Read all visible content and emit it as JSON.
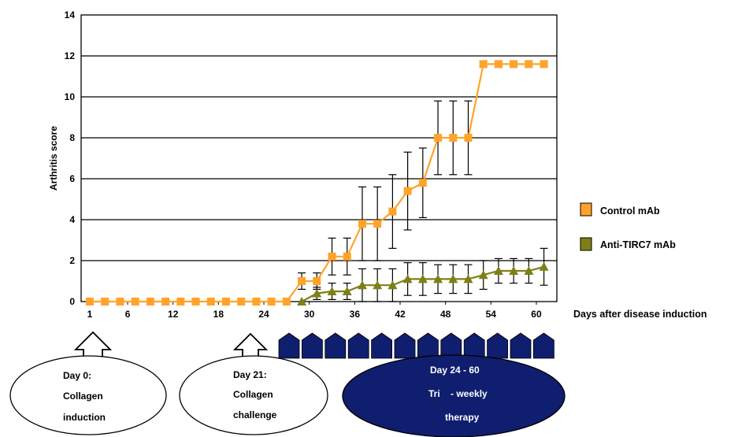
{
  "chart_data": {
    "type": "line",
    "xlabel": "Days after disease induction",
    "ylabel": "Arthritis score",
    "ylim": [
      0,
      14
    ],
    "yticks": [
      "0",
      "2",
      "4",
      "6",
      "8",
      "10",
      "12",
      "14"
    ],
    "xticks": [
      "1",
      "6",
      "12",
      "18",
      "24",
      "30",
      "36",
      "42",
      "48",
      "54",
      "60"
    ],
    "grid": "horizontal",
    "legend_position": "right",
    "series": [
      {
        "name": "Control mAb",
        "color": "#FFA32A",
        "marker": "square",
        "x": [
          1,
          3,
          5,
          7,
          9,
          11,
          13,
          15,
          17,
          19,
          21,
          23,
          25,
          27,
          29,
          31,
          33,
          35,
          37,
          39,
          41,
          43,
          45,
          47,
          49,
          51,
          53,
          55,
          57,
          59,
          61
        ],
        "y": [
          0,
          0,
          0,
          0,
          0,
          0,
          0,
          0,
          0,
          0,
          0,
          0,
          0,
          0,
          1.0,
          1.0,
          2.2,
          2.2,
          3.8,
          3.8,
          4.4,
          5.4,
          5.8,
          8.0,
          8.0,
          8.0,
          11.6,
          11.6,
          11.6,
          11.6,
          11.6
        ],
        "error": [
          0,
          0,
          0,
          0,
          0,
          0,
          0,
          0,
          0,
          0,
          0,
          0,
          0,
          0,
          0.4,
          0.4,
          0.9,
          0.9,
          1.8,
          1.8,
          1.8,
          1.9,
          1.7,
          1.8,
          1.8,
          1.8,
          0.15,
          0.15,
          0.15,
          0.15,
          0.15
        ]
      },
      {
        "name": "Anti-TIRC7 mAb",
        "color": "#7F7F16",
        "marker": "triangle",
        "x": [
          29,
          31,
          33,
          35,
          37,
          39,
          41,
          43,
          45,
          47,
          49,
          51,
          53,
          55,
          57,
          59,
          61
        ],
        "y": [
          0,
          0.4,
          0.5,
          0.5,
          0.8,
          0.8,
          0.8,
          1.1,
          1.1,
          1.1,
          1.1,
          1.1,
          1.3,
          1.5,
          1.5,
          1.5,
          1.7
        ],
        "error": [
          0,
          0.3,
          0.4,
          0.4,
          0.8,
          0.8,
          0.8,
          0.8,
          0.8,
          0.7,
          0.7,
          0.7,
          0.7,
          0.6,
          0.6,
          0.6,
          0.9
        ]
      }
    ]
  },
  "timeline": {
    "arrow_color": "#0F1E6E",
    "therapy_arrow_count": 12,
    "events": [
      {
        "lines": [
          "Day 0:",
          "Collagen",
          "induction"
        ],
        "fill": "#ffffff",
        "text_color": "#000000"
      },
      {
        "lines": [
          "Day 21:",
          "Collagen",
          "challenge"
        ],
        "fill": "#ffffff",
        "text_color": "#000000"
      },
      {
        "lines": [
          "Day 24 - 60",
          "Tri    - weekly",
          "therapy"
        ],
        "fill": "#0F1E6E",
        "text_color": "#ffffff"
      }
    ]
  }
}
